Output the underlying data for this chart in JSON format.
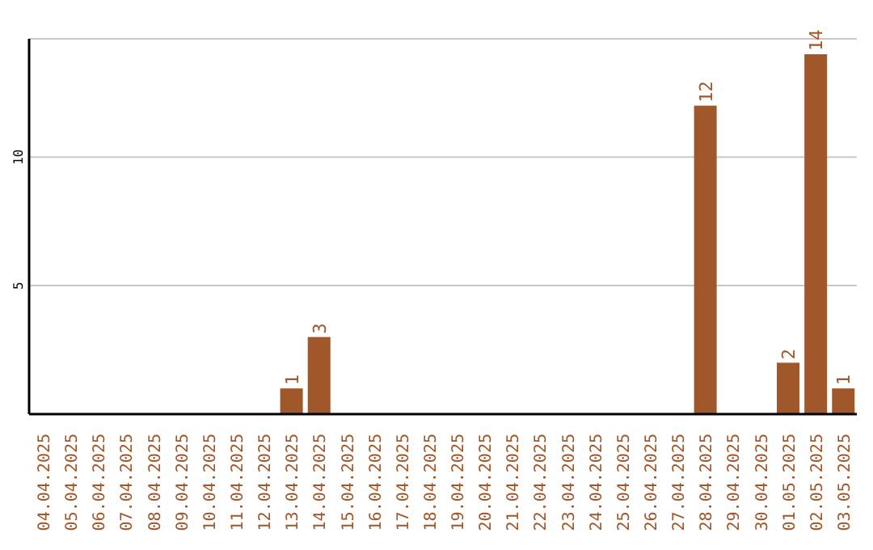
{
  "chart_data": {
    "type": "bar",
    "categories": [
      "04.04.2025",
      "05.04.2025",
      "06.04.2025",
      "07.04.2025",
      "08.04.2025",
      "09.04.2025",
      "10.04.2025",
      "11.04.2025",
      "12.04.2025",
      "13.04.2025",
      "14.04.2025",
      "15.04.2025",
      "16.04.2025",
      "17.04.2025",
      "18.04.2025",
      "19.04.2025",
      "20.04.2025",
      "21.04.2025",
      "22.04.2025",
      "23.04.2025",
      "24.04.2025",
      "25.04.2025",
      "26.04.2025",
      "27.04.2025",
      "28.04.2025",
      "29.04.2025",
      "30.04.2025",
      "01.05.2025",
      "02.05.2025",
      "03.05.2025"
    ],
    "values": [
      0,
      0,
      0,
      0,
      0,
      0,
      0,
      0,
      0,
      1,
      3,
      0,
      0,
      0,
      0,
      0,
      0,
      0,
      0,
      0,
      0,
      0,
      0,
      0,
      12,
      0,
      0,
      2,
      14,
      1
    ],
    "value_labels": [
      null,
      null,
      null,
      null,
      null,
      null,
      null,
      null,
      null,
      "1",
      "3",
      null,
      null,
      null,
      null,
      null,
      null,
      null,
      null,
      null,
      null,
      null,
      null,
      null,
      "12",
      null,
      null,
      "2",
      "14",
      "1"
    ],
    "color": "#a0572a",
    "ylim": [
      0,
      14.6
    ],
    "yticks": [
      5,
      10
    ],
    "grid": "y"
  }
}
